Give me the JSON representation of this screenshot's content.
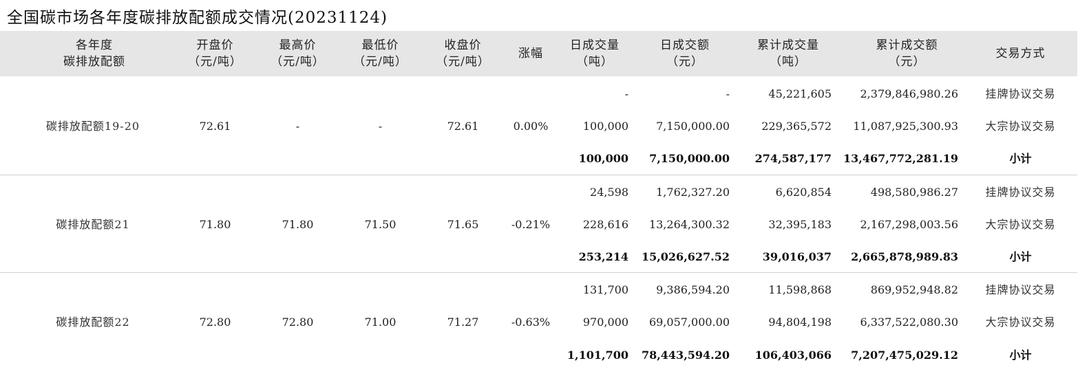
{
  "title": "全国碳市场各年度碳排放配额成交情况(20231124)",
  "headers": {
    "vintage": [
      "各年度",
      "碳排放配额"
    ],
    "open": [
      "开盘价",
      "（元/吨）"
    ],
    "high": [
      "最高价",
      "（元/吨）"
    ],
    "low": [
      "最低价",
      "（元/吨）"
    ],
    "close": [
      "收盘价",
      "（元/吨）"
    ],
    "change": [
      "涨幅"
    ],
    "daily_volume": [
      "日成交量",
      "（吨）"
    ],
    "daily_amount": [
      "日成交额",
      "（元）"
    ],
    "cum_volume": [
      "累计成交量",
      "（吨）"
    ],
    "cum_amount": [
      "累计成交额",
      "（元）"
    ],
    "method": [
      "交易方式"
    ]
  },
  "groups": [
    {
      "vintage": "碳排放配额19-20",
      "open": "72.61",
      "high": "-",
      "low": "-",
      "close": "72.61",
      "change": "0.00%",
      "rows": [
        {
          "daily_volume": "-",
          "daily_amount": "-",
          "cum_volume": "45,221,605",
          "cum_amount": "2,379,846,980.26",
          "method": "挂牌协议交易"
        },
        {
          "daily_volume": "100,000",
          "daily_amount": "7,150,000.00",
          "cum_volume": "229,365,572",
          "cum_amount": "11,087,925,300.93",
          "method": "大宗协议交易"
        },
        {
          "daily_volume": "100,000",
          "daily_amount": "7,150,000.00",
          "cum_volume": "274,587,177",
          "cum_amount": "13,467,772,281.19",
          "method": "小计"
        }
      ]
    },
    {
      "vintage": "碳排放配额21",
      "open": "71.80",
      "high": "71.80",
      "low": "71.50",
      "close": "71.65",
      "change": "-0.21%",
      "rows": [
        {
          "daily_volume": "24,598",
          "daily_amount": "1,762,327.20",
          "cum_volume": "6,620,854",
          "cum_amount": "498,580,986.27",
          "method": "挂牌协议交易"
        },
        {
          "daily_volume": "228,616",
          "daily_amount": "13,264,300.32",
          "cum_volume": "32,395,183",
          "cum_amount": "2,167,298,003.56",
          "method": "大宗协议交易"
        },
        {
          "daily_volume": "253,214",
          "daily_amount": "15,026,627.52",
          "cum_volume": "39,016,037",
          "cum_amount": "2,665,878,989.83",
          "method": "小计"
        }
      ]
    },
    {
      "vintage": "碳排放配额22",
      "open": "72.80",
      "high": "72.80",
      "low": "71.00",
      "close": "71.27",
      "change": "-0.63%",
      "rows": [
        {
          "daily_volume": "131,700",
          "daily_amount": "9,386,594.20",
          "cum_volume": "11,598,868",
          "cum_amount": "869,952,948.82",
          "method": "挂牌协议交易"
        },
        {
          "daily_volume": "970,000",
          "daily_amount": "69,057,000.00",
          "cum_volume": "94,804,198",
          "cum_amount": "6,337,522,080.30",
          "method": "大宗协议交易"
        },
        {
          "daily_volume": "1,101,700",
          "daily_amount": "78,443,594.20",
          "cum_volume": "106,403,066",
          "cum_amount": "7,207,475,029.12",
          "method": "小计"
        }
      ]
    }
  ]
}
